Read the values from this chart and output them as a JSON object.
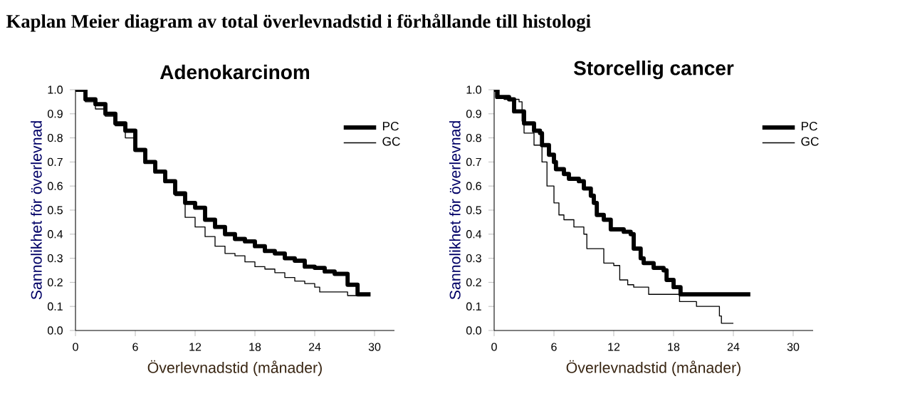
{
  "chart_data": [
    {
      "type": "step",
      "title": "Adenokarcinom",
      "xlabel": "Överlevnadstid (månader)",
      "ylabel": "Sannolikhet för överlevnad",
      "annotations": [
        "Kaplan Meier diagram av total överlevnadstid i förhållande till histologi"
      ],
      "legend": "top right",
      "xlim": [
        0,
        32
      ],
      "xticks": [
        0,
        6,
        12,
        18,
        24,
        30
      ],
      "ylim": [
        0,
        1
      ],
      "yticks": [
        {
          "value": 0,
          "label": "0.0"
        },
        {
          "value": 0.1,
          "label": "0.1"
        },
        {
          "value": 0.2,
          "label": "0.2"
        },
        {
          "value": 0.3,
          "label": "0.3"
        },
        {
          "value": 0.4,
          "label": "0.4"
        },
        {
          "value": 0.5,
          "label": "0.5"
        },
        {
          "value": 0.6,
          "label": "0.6"
        },
        {
          "value": 0.7,
          "label": "0.7"
        },
        {
          "value": 0.8,
          "label": "0.8"
        },
        {
          "value": 0.9,
          "label": "0.9"
        },
        {
          "value": 1,
          "label": "1.0"
        }
      ],
      "series": [
        {
          "name": "PC",
          "color": "#000000",
          "x": [
            0,
            1,
            2,
            3,
            4,
            5,
            6,
            7,
            8,
            9,
            10,
            11,
            12,
            13,
            14,
            15,
            16,
            17,
            18,
            19,
            20,
            21,
            22,
            23,
            24,
            25,
            26,
            27,
            27.3,
            28.3,
            29.6
          ],
          "values": [
            1.0,
            0.96,
            0.94,
            0.9,
            0.86,
            0.83,
            0.75,
            0.7,
            0.66,
            0.62,
            0.57,
            0.53,
            0.51,
            0.46,
            0.43,
            0.4,
            0.38,
            0.37,
            0.35,
            0.33,
            0.32,
            0.3,
            0.29,
            0.265,
            0.26,
            0.245,
            0.235,
            0.235,
            0.19,
            0.15,
            0.15
          ]
        },
        {
          "name": "GC",
          "color": "#000000",
          "x": [
            0,
            1,
            2,
            3,
            4,
            5,
            6,
            7,
            8,
            9,
            10,
            11,
            12,
            13,
            14,
            15,
            16,
            17,
            18,
            19,
            20,
            21,
            22,
            23,
            24,
            24.5,
            27,
            27.3,
            29.5
          ],
          "values": [
            1.0,
            0.95,
            0.92,
            0.89,
            0.85,
            0.8,
            0.75,
            0.7,
            0.66,
            0.62,
            0.56,
            0.47,
            0.43,
            0.39,
            0.35,
            0.32,
            0.31,
            0.285,
            0.265,
            0.255,
            0.24,
            0.22,
            0.205,
            0.195,
            0.18,
            0.16,
            0.16,
            0.145,
            0.145
          ]
        }
      ]
    },
    {
      "type": "step",
      "title": "Storcellig cancer",
      "xlabel": "Överlevnadstid (månader)",
      "ylabel": "Sannolikhet för överlevnad",
      "legend": "top right",
      "xlim": [
        0,
        32
      ],
      "xticks": [
        0,
        6,
        12,
        18,
        24,
        30
      ],
      "ylim": [
        0,
        1
      ],
      "yticks": [
        {
          "value": 0,
          "label": "0.0"
        },
        {
          "value": 0.1,
          "label": "0.1"
        },
        {
          "value": 0.2,
          "label": "0.2"
        },
        {
          "value": 0.3,
          "label": "0.3"
        },
        {
          "value": 0.4,
          "label": "0.4"
        },
        {
          "value": 0.5,
          "label": "0.5"
        },
        {
          "value": 0.6,
          "label": "0.6"
        },
        {
          "value": 0.7,
          "label": "0.7"
        },
        {
          "value": 0.8,
          "label": "0.8"
        },
        {
          "value": 0.9,
          "label": "0.9"
        },
        {
          "value": 1,
          "label": "1.0"
        }
      ],
      "series": [
        {
          "name": "PC",
          "color": "#000000",
          "x": [
            0,
            0.3,
            1.5,
            2,
            3,
            4,
            4.6,
            4.8,
            5.5,
            6,
            6.2,
            7,
            7.5,
            8.5,
            9,
            9.7,
            10,
            10.3,
            11,
            11.7,
            13,
            13.7,
            14,
            14.7,
            15,
            16,
            17,
            17.3,
            18,
            18.7,
            25.7
          ],
          "values": [
            1.0,
            0.97,
            0.96,
            0.91,
            0.86,
            0.83,
            0.82,
            0.77,
            0.73,
            0.7,
            0.67,
            0.65,
            0.63,
            0.62,
            0.59,
            0.56,
            0.53,
            0.48,
            0.46,
            0.42,
            0.41,
            0.4,
            0.34,
            0.3,
            0.28,
            0.26,
            0.25,
            0.21,
            0.18,
            0.15,
            0.15
          ]
        },
        {
          "name": "GC",
          "color": "#000000",
          "x": [
            0,
            0.5,
            1,
            2.5,
            2.8,
            3,
            4,
            4.8,
            5.3,
            6,
            6.5,
            7,
            8,
            9,
            9.3,
            11,
            12,
            12.6,
            13.4,
            14,
            15.5,
            18.6,
            20.3,
            22.6,
            22.8,
            24
          ],
          "values": [
            1.0,
            0.97,
            0.96,
            0.95,
            0.87,
            0.82,
            0.77,
            0.7,
            0.6,
            0.53,
            0.48,
            0.46,
            0.43,
            0.4,
            0.34,
            0.28,
            0.27,
            0.21,
            0.19,
            0.18,
            0.15,
            0.12,
            0.1,
            0.06,
            0.03,
            0.03
          ]
        }
      ]
    }
  ]
}
